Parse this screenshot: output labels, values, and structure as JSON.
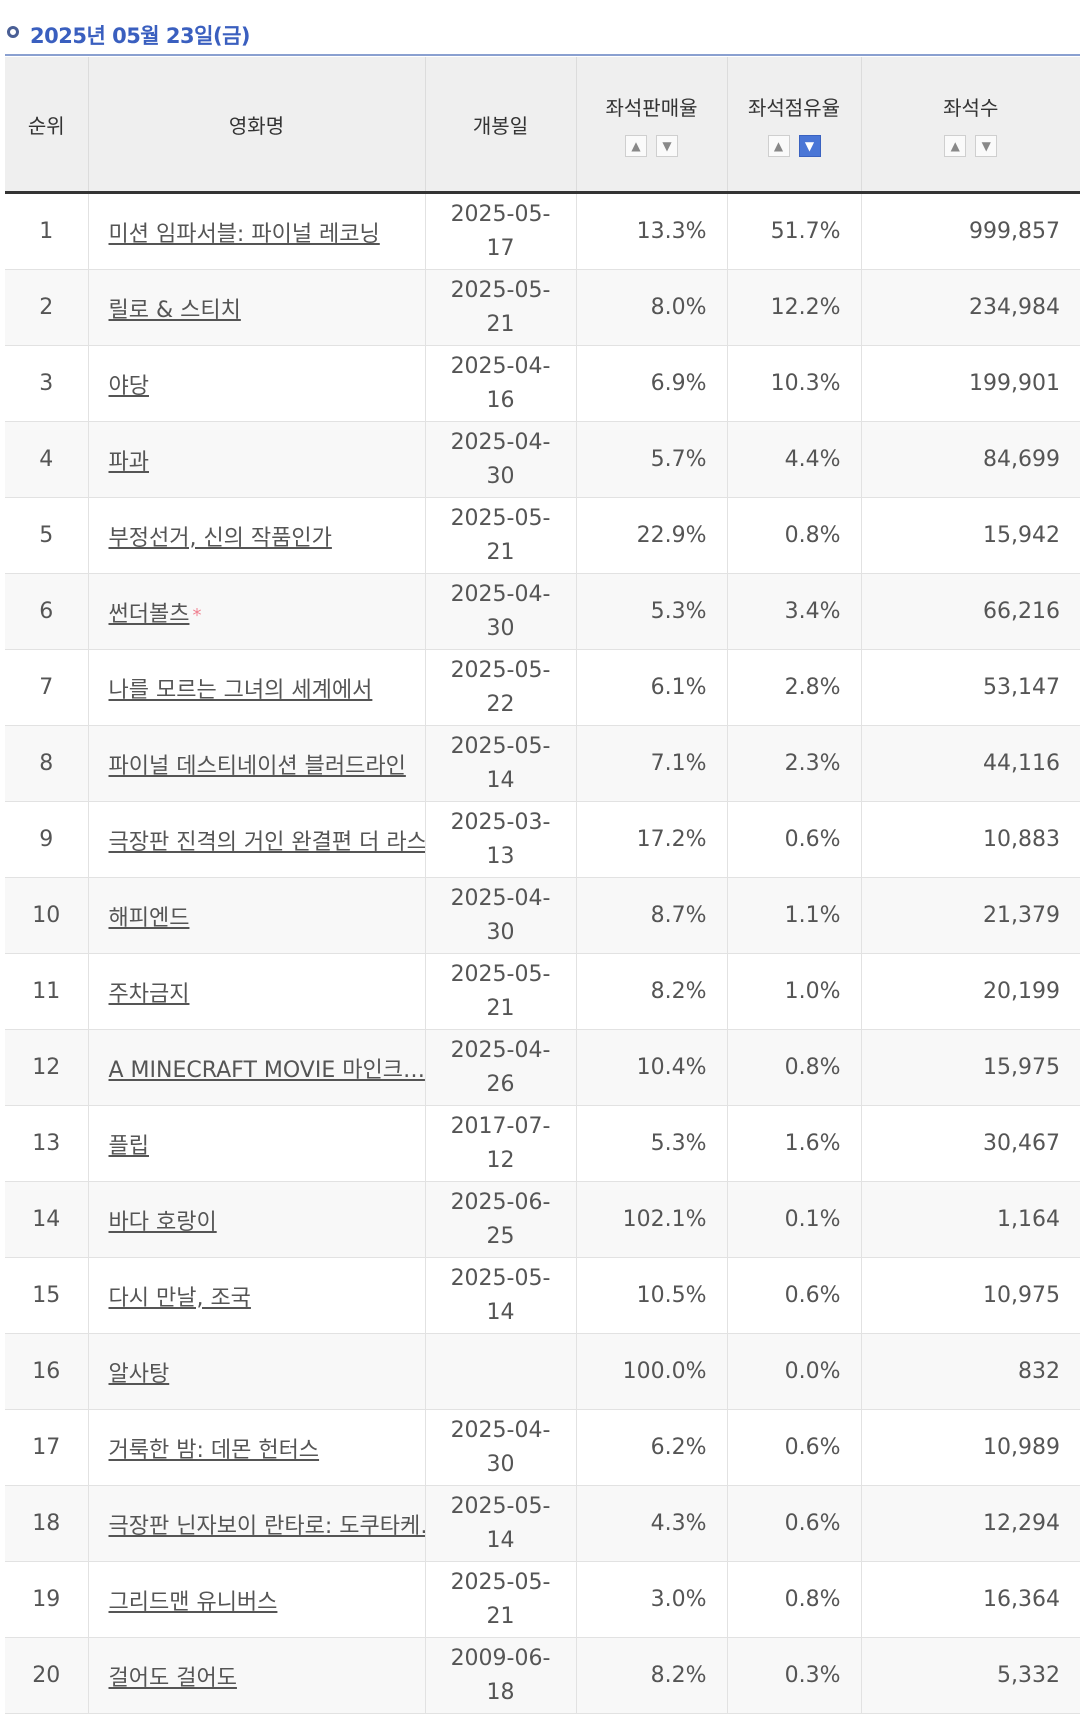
{
  "date_header": "2025년 05월 23일(금)",
  "columns": [
    "순위",
    "영화명",
    "개봉일",
    "좌석판매율",
    "좌석점유율",
    "좌석수"
  ],
  "sort_icons": {
    "up": "chevron-up-icon",
    "down": "chevron-down-icon"
  },
  "active_sort": "좌석점유율 desc",
  "rows": [
    {
      "rank": "1",
      "title": "미션 임파서블: 파이널 레코닝",
      "open": "2025-05-17",
      "sales_rate": "13.3%",
      "share": "51.7%",
      "seats": "999,857"
    },
    {
      "rank": "2",
      "title": "릴로 & 스티치",
      "open": "2025-05-21",
      "sales_rate": "8.0%",
      "share": "12.2%",
      "seats": "234,984"
    },
    {
      "rank": "3",
      "title": "야당",
      "open": "2025-04-16",
      "sales_rate": "6.9%",
      "share": "10.3%",
      "seats": "199,901"
    },
    {
      "rank": "4",
      "title": "파과",
      "open": "2025-04-30",
      "sales_rate": "5.7%",
      "share": "4.4%",
      "seats": "84,699"
    },
    {
      "rank": "5",
      "title": "부정선거, 신의 작품인가",
      "open": "2025-05-21",
      "sales_rate": "22.9%",
      "share": "0.8%",
      "seats": "15,942"
    },
    {
      "rank": "6",
      "title": "썬더볼츠",
      "star": "*",
      "open": "2025-04-30",
      "sales_rate": "5.3%",
      "share": "3.4%",
      "seats": "66,216"
    },
    {
      "rank": "7",
      "title": "나를 모르는 그녀의 세계에서",
      "open": "2025-05-22",
      "sales_rate": "6.1%",
      "share": "2.8%",
      "seats": "53,147"
    },
    {
      "rank": "8",
      "title": "파이널 데스티네이션 블러드라인",
      "open": "2025-05-14",
      "sales_rate": "7.1%",
      "share": "2.3%",
      "seats": "44,116"
    },
    {
      "rank": "9",
      "title": "극장판 진격의 거인 완결편 더 라스…",
      "open": "2025-03-13",
      "sales_rate": "17.2%",
      "share": "0.6%",
      "seats": "10,883"
    },
    {
      "rank": "10",
      "title": "해피엔드",
      "open": "2025-04-30",
      "sales_rate": "8.7%",
      "share": "1.1%",
      "seats": "21,379"
    },
    {
      "rank": "11",
      "title": "주차금지",
      "open": "2025-05-21",
      "sales_rate": "8.2%",
      "share": "1.0%",
      "seats": "20,199"
    },
    {
      "rank": "12",
      "title": "A MINECRAFT MOVIE 마인크…",
      "open": "2025-04-26",
      "sales_rate": "10.4%",
      "share": "0.8%",
      "seats": "15,975"
    },
    {
      "rank": "13",
      "title": "플립",
      "open": "2017-07-12",
      "sales_rate": "5.3%",
      "share": "1.6%",
      "seats": "30,467"
    },
    {
      "rank": "14",
      "title": "바다 호랑이",
      "open": "2025-06-25",
      "sales_rate": "102.1%",
      "share": "0.1%",
      "seats": "1,164"
    },
    {
      "rank": "15",
      "title": "다시 만날, 조국",
      "open": "2025-05-14",
      "sales_rate": "10.5%",
      "share": "0.6%",
      "seats": "10,975"
    },
    {
      "rank": "16",
      "title": "알사탕",
      "open": "",
      "sales_rate": "100.0%",
      "share": "0.0%",
      "seats": "832"
    },
    {
      "rank": "17",
      "title": "거룩한 밤: 데몬 헌터스",
      "open": "2025-04-30",
      "sales_rate": "6.2%",
      "share": "0.6%",
      "seats": "10,989"
    },
    {
      "rank": "18",
      "title": "극장판 닌자보이 란타로: 도쿠타케…",
      "open": "2025-05-14",
      "sales_rate": "4.3%",
      "share": "0.6%",
      "seats": "12,294"
    },
    {
      "rank": "19",
      "title": "그리드맨 유니버스",
      "open": "2025-05-21",
      "sales_rate": "3.0%",
      "share": "0.8%",
      "seats": "16,364"
    },
    {
      "rank": "20",
      "title": "걸어도 걸어도",
      "open": "2009-06-18",
      "sales_rate": "8.2%",
      "share": "0.3%",
      "seats": "5,332"
    }
  ]
}
